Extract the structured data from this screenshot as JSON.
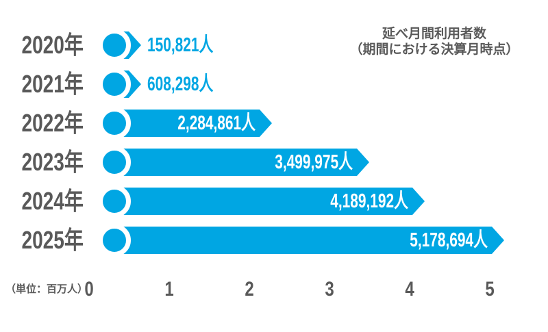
{
  "title": {
    "line1": "延べ月間利用者数",
    "line2": "（期間における決算月時点）"
  },
  "chart_data": {
    "type": "bar",
    "orientation": "horizontal",
    "title": "延べ月間利用者数（期間における決算月時点）",
    "categories": [
      "2020年",
      "2021年",
      "2022年",
      "2023年",
      "2024年",
      "2025年"
    ],
    "values": [
      150821,
      608298,
      2284861,
      3499975,
      4189192,
      5178694
    ],
    "value_labels": [
      "150,821人",
      "608,298人",
      "2,284,861人",
      "3,499,975人",
      "4,189,192人",
      "5,178,694人"
    ],
    "x_ticks": [
      "0",
      "1",
      "2",
      "3",
      "4",
      "5"
    ],
    "xlim": [
      0,
      5.7
    ],
    "xlabel": "（単位：百万人）",
    "unit": "百万人",
    "grid": false,
    "legend_position": "none",
    "colors": {
      "bar": "#00a6e3",
      "axis_text": "#595959",
      "value_inside": "#ffffff",
      "value_outside": "#00a6e3",
      "marker_fill": "#00a6e3",
      "marker_ring": "#ffffff"
    }
  }
}
